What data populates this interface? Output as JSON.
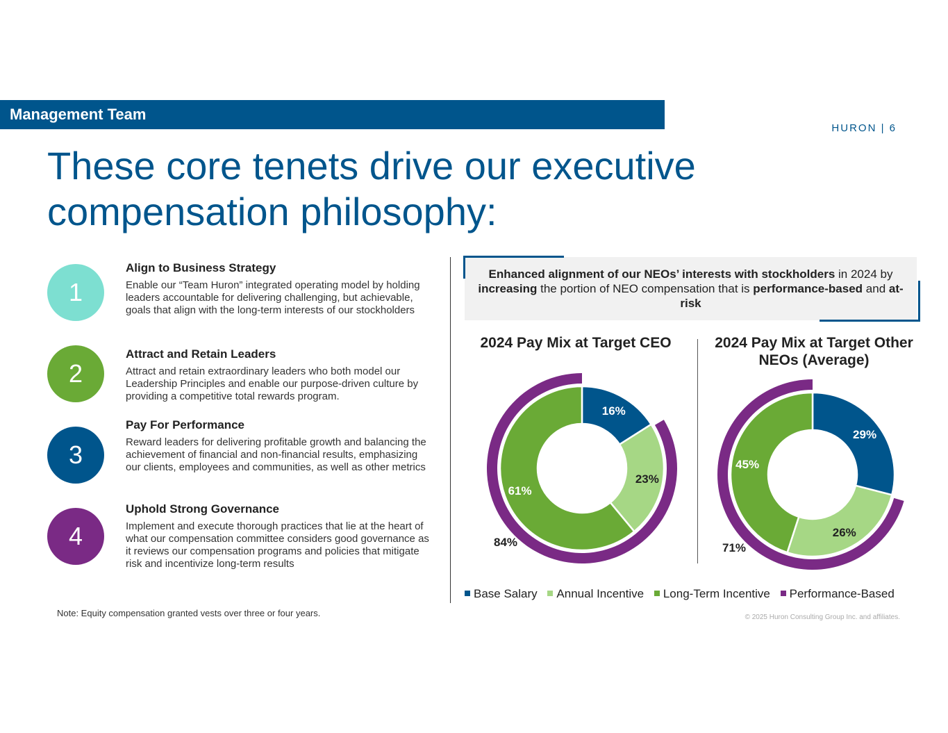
{
  "header": {
    "section_label": "Management Team",
    "page_indicator": "HURON | 6",
    "title": "These core tenets drive our executive compensation philosophy:"
  },
  "tenets": [
    {
      "number": "1",
      "color": "#7ddfd1",
      "title": "Align to Business Strategy",
      "description": "Enable our “Team Huron” integrated operating model by holding leaders accountable for delivering challenging, but achievable, goals that align with the long-term interests of our stockholders"
    },
    {
      "number": "2",
      "color": "#6aaa36",
      "title": "Attract and Retain Leaders",
      "description": "Attract and retain extraordinary leaders who both model our Leadership Principles and enable our purpose-driven culture by providing a competitive total rewards program."
    },
    {
      "number": "3",
      "color": "#00558c",
      "title": "Pay For Performance",
      "description": "Reward leaders for delivering profitable growth and balancing the achievement of financial and non-financial results, emphasizing our clients, employees and communities, as well as other metrics"
    },
    {
      "number": "4",
      "color": "#7a2a85",
      "title": "Uphold Strong Governance",
      "description": "Implement and execute thorough practices that lie at the heart of what our compensation committee considers good governance as it reviews our compensation programs and policies that mitigate risk and incentivize long-term results"
    }
  ],
  "callout": {
    "part1_bold": "Enhanced alignment of our NEOs’ interests with stockholders",
    "part2": " in 2024 by ",
    "part3_bold": "increasing",
    "part4": " the portion of NEO compensation that is ",
    "part5_bold": "performance-based",
    "part6": " and ",
    "part7_bold": "at-risk"
  },
  "colors": {
    "base_salary": "#00558c",
    "annual_incentive": "#a6d785",
    "long_term_incentive": "#6aaa36",
    "performance_based": "#7a2a85",
    "brand": "#00558c"
  },
  "chart_data": [
    {
      "type": "pie",
      "title": "2024 Pay Mix at Target CEO",
      "categories": [
        "Base Salary",
        "Annual Incentive",
        "Long-Term Incentive"
      ],
      "values": [
        16,
        23,
        61
      ],
      "labels": [
        "16%",
        "23%",
        "61%"
      ],
      "outer_ring": {
        "name": "Performance-Based",
        "value": 84,
        "label": "84%"
      }
    },
    {
      "type": "pie",
      "title": "2024 Pay Mix at Target Other NEOs (Average)",
      "categories": [
        "Base Salary",
        "Annual Incentive",
        "Long-Term Incentive"
      ],
      "values": [
        29,
        26,
        45
      ],
      "labels": [
        "29%",
        "26%",
        "45%"
      ],
      "outer_ring": {
        "name": "Performance-Based",
        "value": 71,
        "label": "71%"
      }
    }
  ],
  "legend": [
    "Base Salary",
    "Annual Incentive",
    "Long-Term Incentive",
    "Performance-Based"
  ],
  "footer": {
    "note": "Note: Equity compensation granted vests over three or four years.",
    "copyright": "© 2025 Huron Consulting Group Inc. and affiliates."
  }
}
